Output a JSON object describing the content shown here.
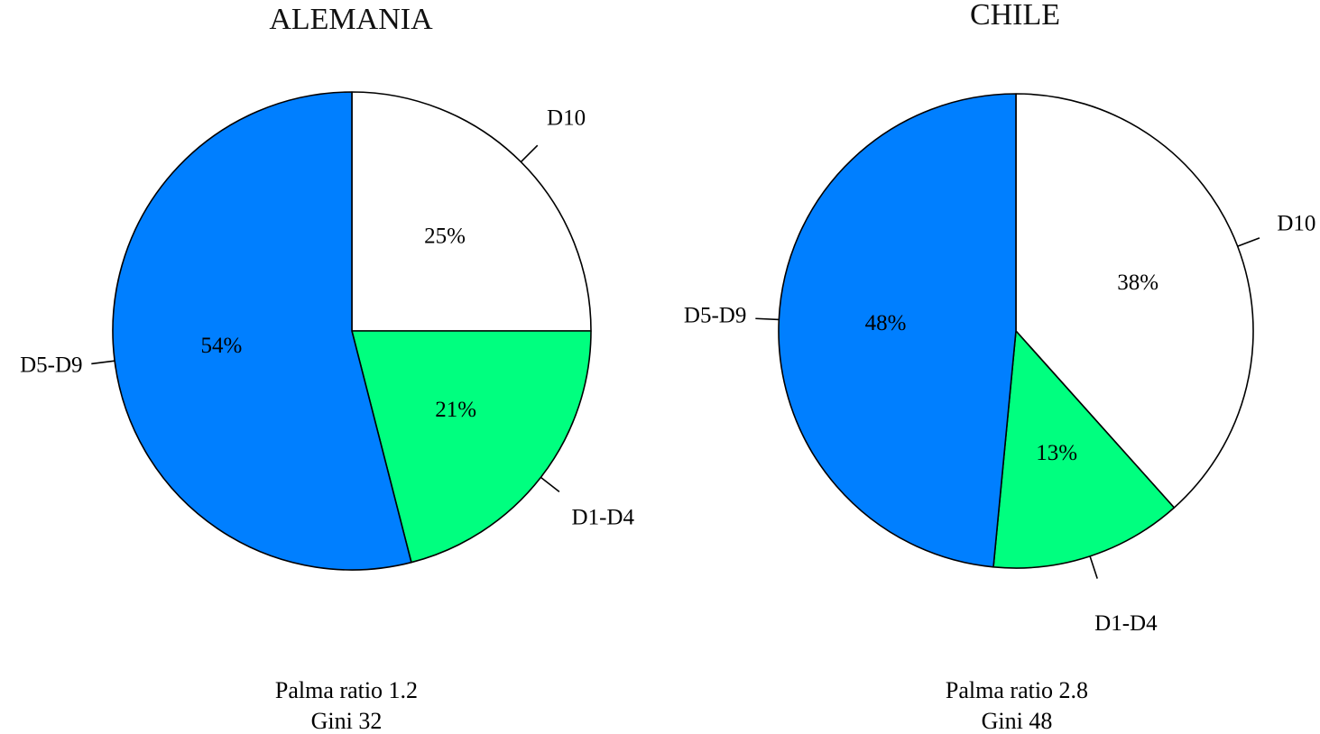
{
  "chart_data": [
    {
      "type": "pie",
      "title": "ALEMANIA",
      "slices": [
        {
          "label": "D10",
          "value": 25,
          "display": "25%",
          "color": "#FFFFFF"
        },
        {
          "label": "D1-D4",
          "value": 21,
          "display": "21%",
          "color": "#00FF7F"
        },
        {
          "label": "D5-D9",
          "value": 54,
          "display": "54%",
          "color": "#007FFF"
        }
      ],
      "footer": [
        "Palma ratio 1.2",
        "Gini 32"
      ]
    },
    {
      "type": "pie",
      "title": "CHILE",
      "slices": [
        {
          "label": "D10",
          "value": 38,
          "display": "38%",
          "color": "#FFFFFF"
        },
        {
          "label": "D1-D4",
          "value": 13,
          "display": "13%",
          "color": "#00FF7F"
        },
        {
          "label": "D5-D9",
          "value": 48,
          "display": "48%",
          "color": "#007FFF"
        }
      ],
      "footer": [
        "Palma ratio 2.8",
        "Gini 48"
      ]
    }
  ]
}
